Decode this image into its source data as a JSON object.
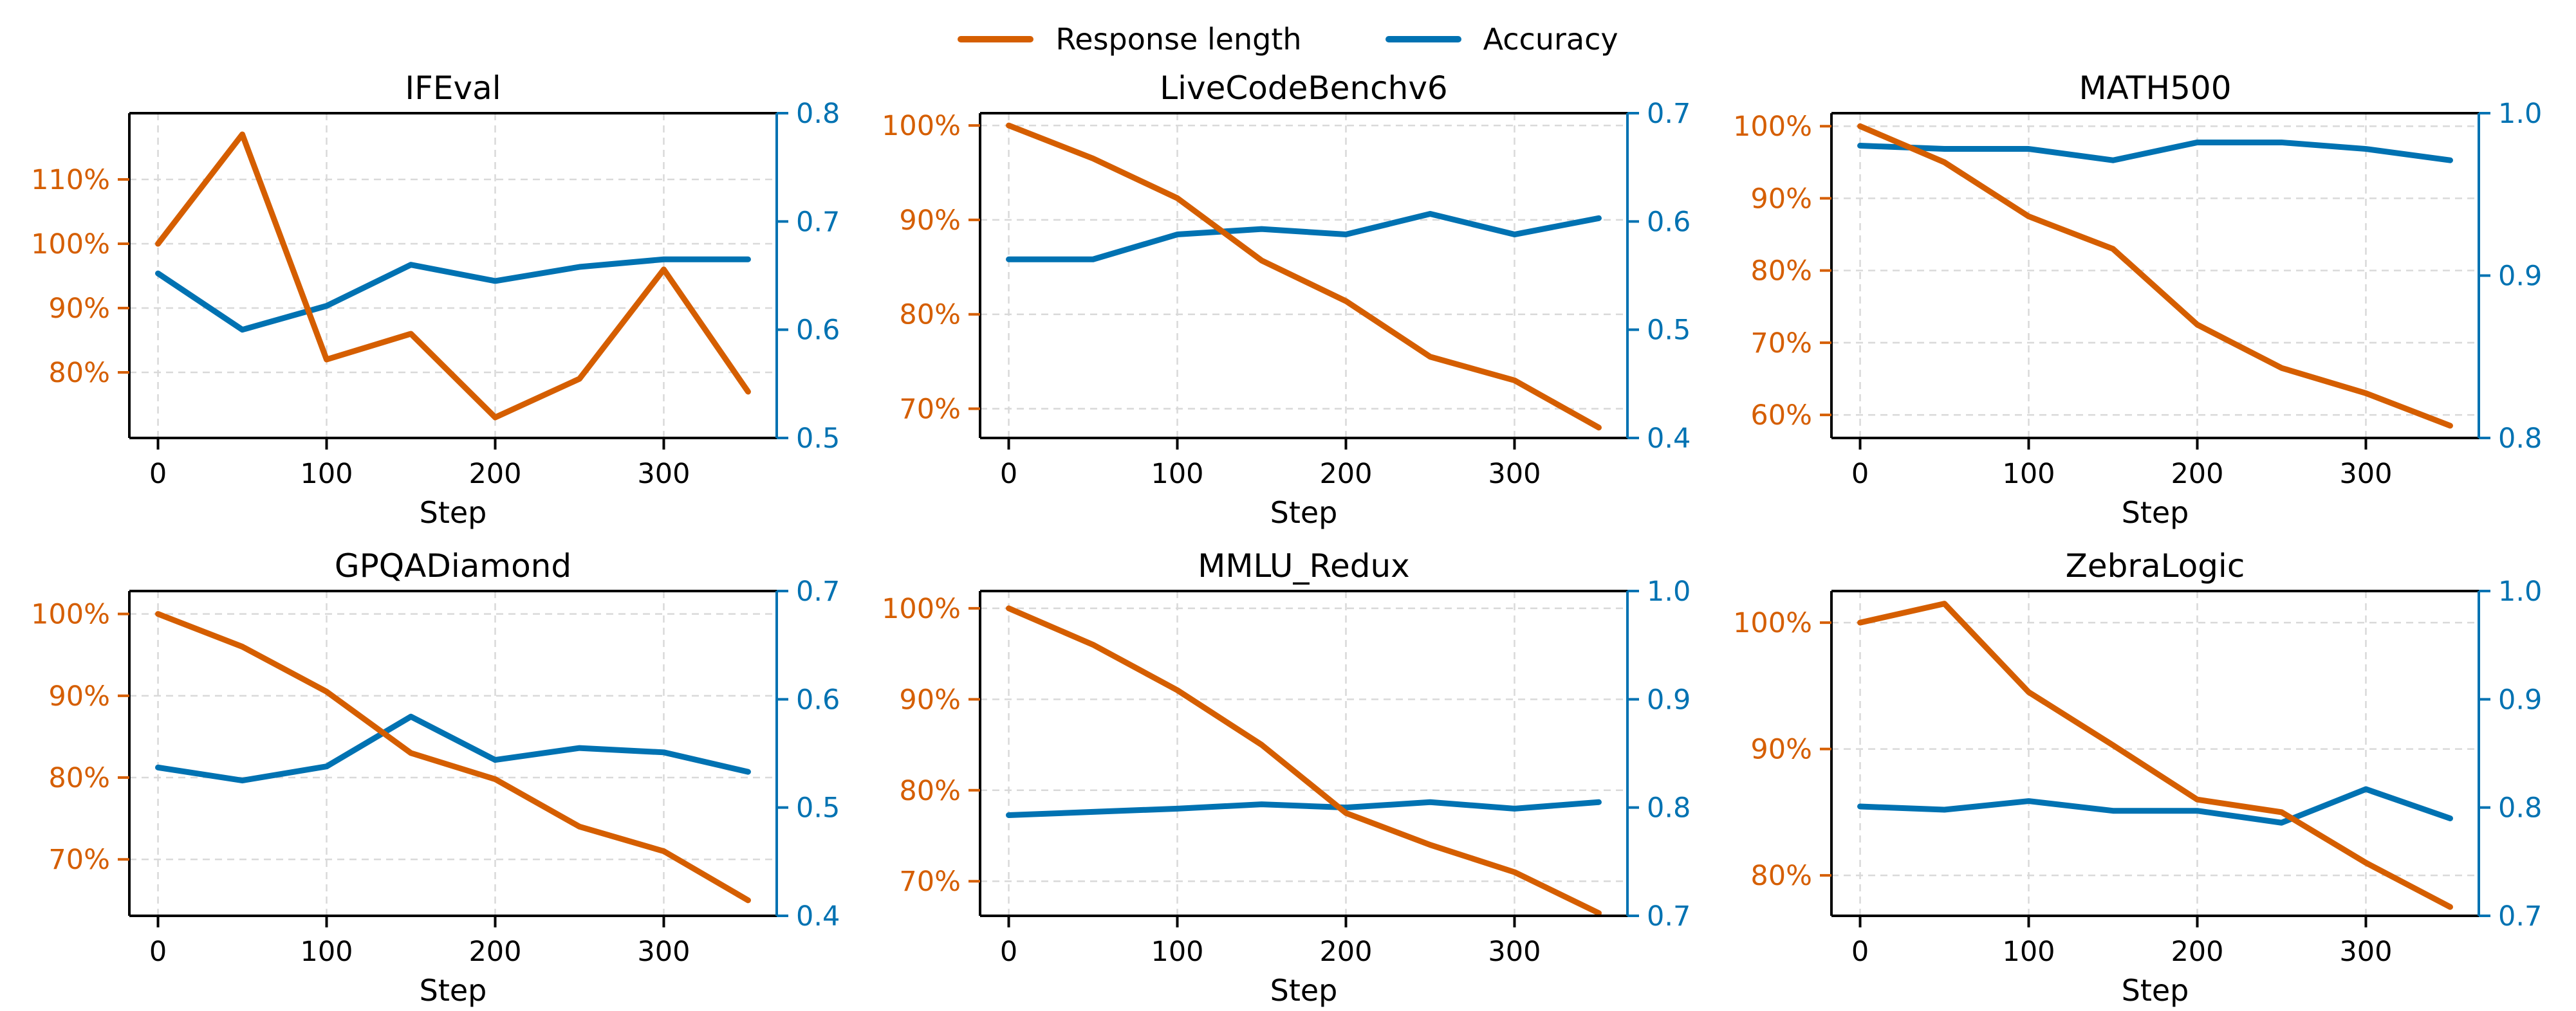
{
  "figure": {
    "background": "#ffffff",
    "xlabel": "Step",
    "x_tick_labels": [
      "0",
      "100",
      "200",
      "300"
    ],
    "x_ticks": [
      0,
      100,
      200,
      300
    ],
    "xlim": [
      -17,
      367
    ],
    "steps": [
      0,
      50,
      100,
      150,
      200,
      250,
      300,
      350
    ]
  },
  "colors": {
    "response_length": "#D55E00",
    "accuracy": "#0072B2",
    "grid": "#D9D9D9",
    "spine": "#000000",
    "title_text": "#000000"
  },
  "legend": {
    "items": [
      {
        "label": "Response length",
        "color": "#D55E00"
      },
      {
        "label": "Accuracy",
        "color": "#0072B2"
      }
    ]
  },
  "chart_data": [
    {
      "type": "line",
      "title": "IFEval",
      "xlabel": "Step",
      "x": [
        0,
        50,
        100,
        150,
        200,
        250,
        300,
        350
      ],
      "series": [
        {
          "name": "Response length",
          "axis": "left",
          "values": [
            100,
            117,
            82,
            86,
            73,
            79,
            96,
            77
          ]
        },
        {
          "name": "Accuracy",
          "axis": "right",
          "values": [
            0.652,
            0.6,
            0.622,
            0.66,
            0.645,
            0.658,
            0.665,
            0.665
          ]
        }
      ],
      "left_axis": {
        "unit": "%",
        "ticks": [
          80,
          90,
          100,
          110
        ],
        "lim": [
          69.8,
          120.3
        ]
      },
      "right_axis": {
        "ticks": [
          0.5,
          0.6,
          0.7,
          0.8
        ],
        "lim": [
          0.5,
          0.8
        ]
      },
      "grid": true,
      "legend_position": "figure-top"
    },
    {
      "type": "line",
      "title": "LiveCodeBenchv6",
      "xlabel": "Step",
      "x": [
        0,
        50,
        100,
        150,
        200,
        250,
        300,
        350
      ],
      "series": [
        {
          "name": "Response length",
          "axis": "left",
          "values": [
            100,
            96.5,
            92.3,
            85.7,
            81.4,
            75.5,
            73,
            68
          ]
        },
        {
          "name": "Accuracy",
          "axis": "right",
          "values": [
            0.565,
            0.565,
            0.588,
            0.593,
            0.588,
            0.607,
            0.588,
            0.603
          ]
        }
      ],
      "left_axis": {
        "unit": "%",
        "ticks": [
          70,
          80,
          90,
          100
        ],
        "lim": [
          66.9,
          101.3
        ]
      },
      "right_axis": {
        "ticks": [
          0.4,
          0.5,
          0.6,
          0.7
        ],
        "lim": [
          0.4,
          0.7
        ]
      },
      "grid": true,
      "legend_position": "figure-top"
    },
    {
      "type": "line",
      "title": "MATH500",
      "xlabel": "Step",
      "x": [
        0,
        50,
        100,
        150,
        200,
        250,
        300,
        350
      ],
      "series": [
        {
          "name": "Response length",
          "axis": "left",
          "values": [
            100,
            95,
            87.5,
            83,
            72.5,
            66.5,
            63,
            58.5
          ]
        },
        {
          "name": "Accuracy",
          "axis": "right",
          "values": [
            0.98,
            0.978,
            0.978,
            0.971,
            0.982,
            0.982,
            0.978,
            0.971
          ]
        }
      ],
      "left_axis": {
        "unit": "%",
        "ticks": [
          60,
          70,
          80,
          90,
          100
        ],
        "lim": [
          56.8,
          101.8
        ]
      },
      "right_axis": {
        "ticks": [
          0.8,
          0.9,
          1.0
        ],
        "lim": [
          0.8,
          1.0
        ]
      },
      "grid": true,
      "legend_position": "figure-top"
    },
    {
      "type": "line",
      "title": "GPQADiamond",
      "xlabel": "Step",
      "x": [
        0,
        50,
        100,
        150,
        200,
        250,
        300,
        350
      ],
      "series": [
        {
          "name": "Response length",
          "axis": "left",
          "values": [
            100,
            96,
            90.5,
            83,
            79.8,
            74,
            71,
            65
          ]
        },
        {
          "name": "Accuracy",
          "axis": "right",
          "values": [
            0.537,
            0.525,
            0.538,
            0.584,
            0.544,
            0.555,
            0.551,
            0.533
          ]
        }
      ],
      "left_axis": {
        "unit": "%",
        "ticks": [
          70,
          80,
          90,
          100
        ],
        "lim": [
          63.1,
          102.8
        ]
      },
      "right_axis": {
        "ticks": [
          0.4,
          0.5,
          0.6,
          0.7
        ],
        "lim": [
          0.4,
          0.7
        ]
      },
      "grid": true,
      "legend_position": "figure-top"
    },
    {
      "type": "line",
      "title": "MMLU_Redux",
      "xlabel": "Step",
      "x": [
        0,
        50,
        100,
        150,
        200,
        250,
        300,
        350
      ],
      "series": [
        {
          "name": "Response length",
          "axis": "left",
          "values": [
            100,
            96,
            91,
            85,
            77.5,
            74,
            71,
            66.5
          ]
        },
        {
          "name": "Accuracy",
          "axis": "right",
          "values": [
            0.793,
            0.796,
            0.799,
            0.803,
            0.8,
            0.805,
            0.799,
            0.805
          ]
        }
      ],
      "left_axis": {
        "unit": "%",
        "ticks": [
          70,
          80,
          90,
          100
        ],
        "lim": [
          66.2,
          101.9
        ]
      },
      "right_axis": {
        "ticks": [
          0.7,
          0.8,
          0.9,
          1.0
        ],
        "lim": [
          0.7,
          1.0
        ]
      },
      "grid": true,
      "legend_position": "figure-top"
    },
    {
      "type": "line",
      "title": "ZebraLogic",
      "xlabel": "Step",
      "x": [
        0,
        50,
        100,
        150,
        200,
        250,
        300,
        350
      ],
      "series": [
        {
          "name": "Response length",
          "axis": "left",
          "values": [
            100,
            101.5,
            94.5,
            90.3,
            86,
            85,
            81,
            77.5
          ]
        },
        {
          "name": "Accuracy",
          "axis": "right",
          "values": [
            0.801,
            0.798,
            0.806,
            0.797,
            0.797,
            0.786,
            0.817,
            0.79
          ]
        }
      ],
      "left_axis": {
        "unit": "%",
        "ticks": [
          80,
          90,
          100
        ],
        "lim": [
          76.8,
          102.5
        ]
      },
      "right_axis": {
        "ticks": [
          0.7,
          0.8,
          0.9,
          1.0
        ],
        "lim": [
          0.7,
          1.0
        ]
      },
      "grid": true,
      "legend_position": "figure-top"
    }
  ]
}
